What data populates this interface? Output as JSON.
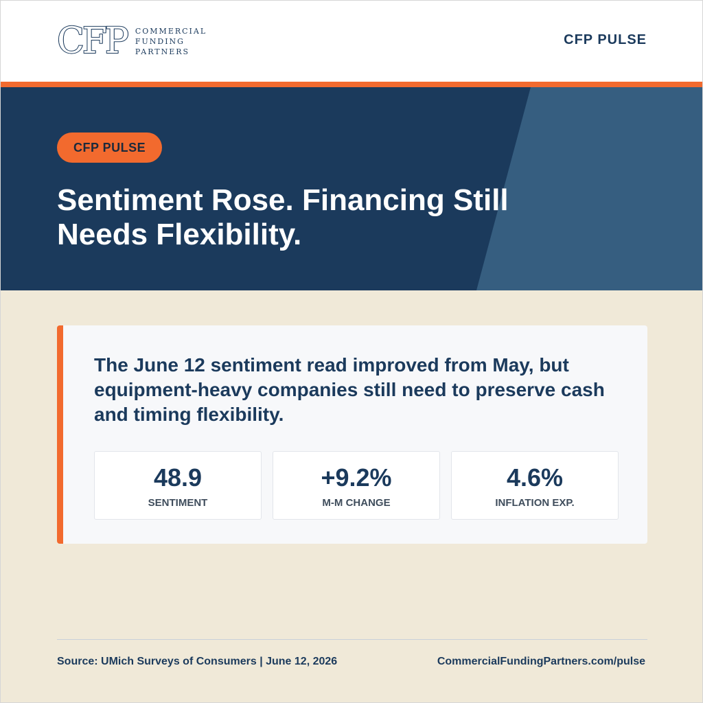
{
  "header": {
    "logo_mark": "CFP",
    "logo_words": [
      "COMMERCIAL",
      "FUNDING",
      "PARTNERS"
    ],
    "brand": "CFP PULSE"
  },
  "hero": {
    "pill": "CFP PULSE",
    "title": "Sentiment Rose. Financing Still Needs Flexibility."
  },
  "card": {
    "text": "The June 12 sentiment read improved from May, but equipment-heavy companies still need to preserve cash and timing flexibility.",
    "stats": [
      {
        "value": "48.9",
        "label": "SENTIMENT"
      },
      {
        "value": "+9.2%",
        "label": "M-M CHANGE"
      },
      {
        "value": "4.6%",
        "label": "INFLATION EXP."
      }
    ]
  },
  "footer": {
    "source": "Source: UMich Surveys of Consumers | June 12, 2026",
    "url": "CommercialFundingPartners.com/pulse"
  },
  "colors": {
    "navy": "#1b3a5c",
    "slate": "#365e80",
    "orange": "#f26a2e",
    "cream": "#f0e9d8"
  }
}
